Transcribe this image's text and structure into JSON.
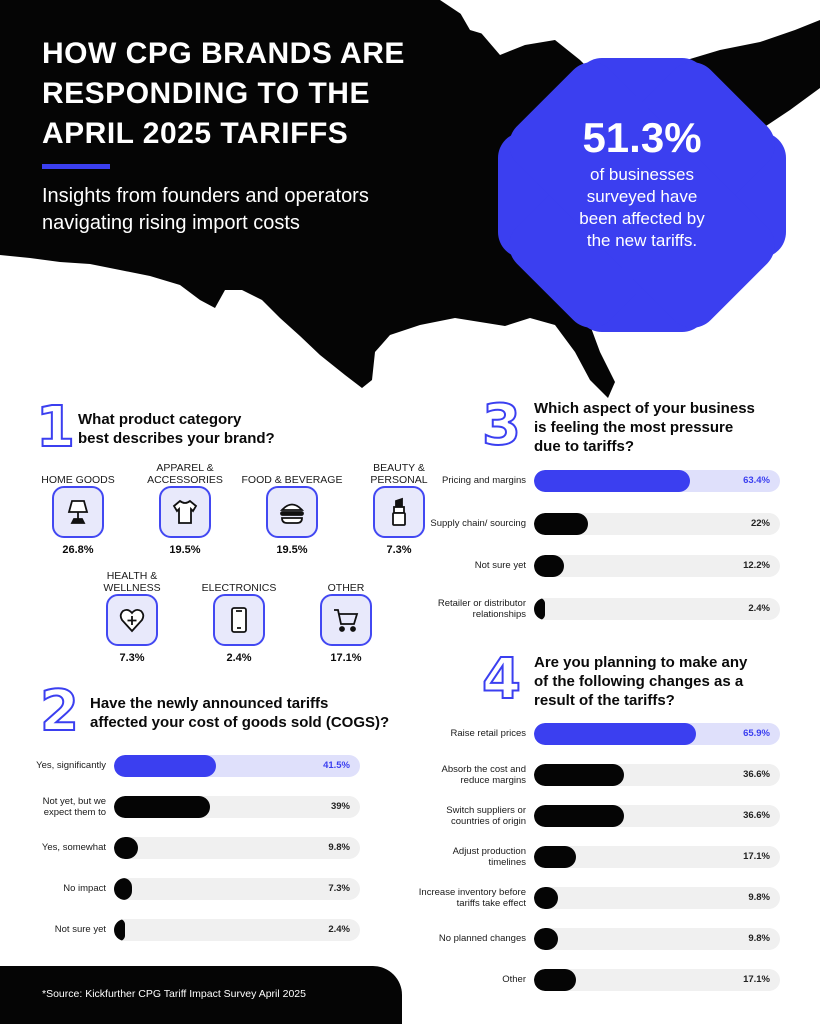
{
  "colors": {
    "accent": "#3b3ff0",
    "accent_light": "#dfe0fb",
    "dark": "#050505",
    "track": "#f0f0f0"
  },
  "hero": {
    "title_lines": [
      "HOW CPG BRANDS ARE",
      "RESPONDING TO THE",
      "APRIL 2025 TARIFFS"
    ],
    "subtitle_lines": [
      "Insights from founders and operators",
      "navigating rising import costs"
    ],
    "stat_value": "51.3%",
    "stat_lines": [
      "of businesses",
      "surveyed have",
      "been affected by",
      "the new tariffs."
    ]
  },
  "q1": {
    "number": "1",
    "question_lines": [
      "What product category",
      "best describes your brand?"
    ],
    "categories": [
      {
        "name": "HOME GOODS",
        "pct": "26.8%",
        "icon": "lamp-icon"
      },
      {
        "name": "APPAREL & ACCESSORIES",
        "pct": "19.5%",
        "icon": "tshirt-icon"
      },
      {
        "name": "FOOD & BEVERAGE",
        "pct": "19.5%",
        "icon": "burger-icon"
      },
      {
        "name": "BEAUTY & PERSONAL",
        "pct": "7.3%",
        "icon": "lipstick-icon"
      },
      {
        "name": "HEALTH & WELLNESS",
        "pct": "7.3%",
        "icon": "heart-plus-icon"
      },
      {
        "name": "ELECTRONICS",
        "pct": "2.4%",
        "icon": "phone-icon"
      },
      {
        "name": "OTHER",
        "pct": "17.1%",
        "icon": "cart-icon"
      }
    ]
  },
  "q2": {
    "number": "2",
    "question_lines": [
      "Have the newly announced tariffs",
      "affected your cost of goods sold (COGS)?"
    ]
  },
  "q3": {
    "number": "3",
    "question_lines": [
      "Which aspect of your business",
      "is feeling the most pressure",
      "due to tariffs?"
    ]
  },
  "q4": {
    "number": "4",
    "question_lines": [
      "Are you planning to make any",
      "of the following changes as a",
      "result of the tariffs?"
    ]
  },
  "chart_data": [
    {
      "type": "bar",
      "orientation": "horizontal",
      "id": "q2",
      "title": "Have the newly announced tariffs affected your cost of goods sold (COGS)?",
      "categories": [
        "Yes, significantly",
        "Not yet, but we expect them to",
        "Yes, somewhat",
        "No impact",
        "Not sure yet"
      ],
      "values": [
        41.5,
        39,
        9.8,
        7.3,
        2.4
      ],
      "labels": [
        "41.5%",
        "39%",
        "9.8%",
        "7.3%",
        "2.4%"
      ],
      "highlight_index": 0,
      "xlim": [
        0,
        100
      ]
    },
    {
      "type": "bar",
      "orientation": "horizontal",
      "id": "q3",
      "title": "Which aspect of your business is feeling the most pressure due to tariffs?",
      "categories": [
        "Pricing and margins",
        "Supply chain/ sourcing",
        "Not sure yet",
        "Retailer or distributor relationships"
      ],
      "values": [
        63.4,
        22,
        12.2,
        2.4
      ],
      "labels": [
        "63.4%",
        "22%",
        "12.2%",
        "2.4%"
      ],
      "highlight_index": 0,
      "xlim": [
        0,
        100
      ]
    },
    {
      "type": "bar",
      "orientation": "horizontal",
      "id": "q4",
      "title": "Are you planning to make any of the following changes as a result of the tariffs?",
      "categories": [
        "Raise retail prices",
        "Absorb the cost and reduce margins",
        "Switch suppliers or countries of origin",
        "Adjust production timelines",
        "Increase inventory before tariffs take effect",
        "No planned changes",
        "Other"
      ],
      "values": [
        65.9,
        36.6,
        36.6,
        17.1,
        9.8,
        9.8,
        17.1
      ],
      "labels": [
        "65.9%",
        "36.6%",
        "36.6%",
        "17.1%",
        "9.8%",
        "9.8%",
        "17.1%"
      ],
      "highlight_index": 0,
      "xlim": [
        0,
        100
      ]
    }
  ],
  "footer": {
    "source": "*Source: Kickfurther CPG Tariff Impact Survey April 2025"
  }
}
